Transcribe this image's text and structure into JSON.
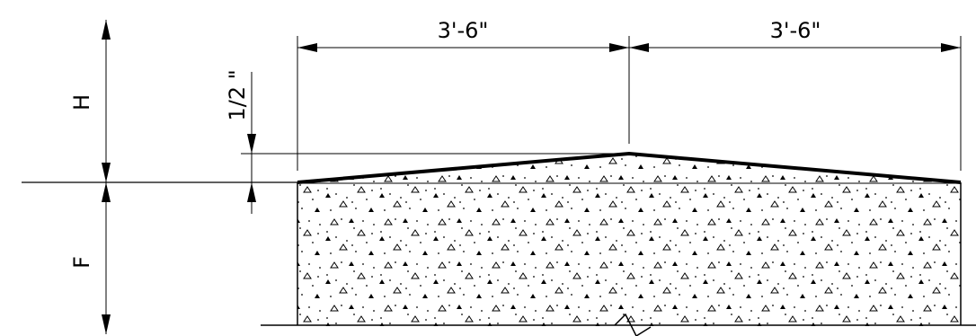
{
  "diagram": {
    "dimensions": {
      "left_width": "3'-6\"",
      "right_width": "3'-6\"",
      "crown_rise": "1/2 \"",
      "height_label": "H",
      "footing_label": "F"
    },
    "colors": {
      "line": "#000000",
      "background": "#ffffff"
    },
    "hatch": "concrete-stipple"
  }
}
